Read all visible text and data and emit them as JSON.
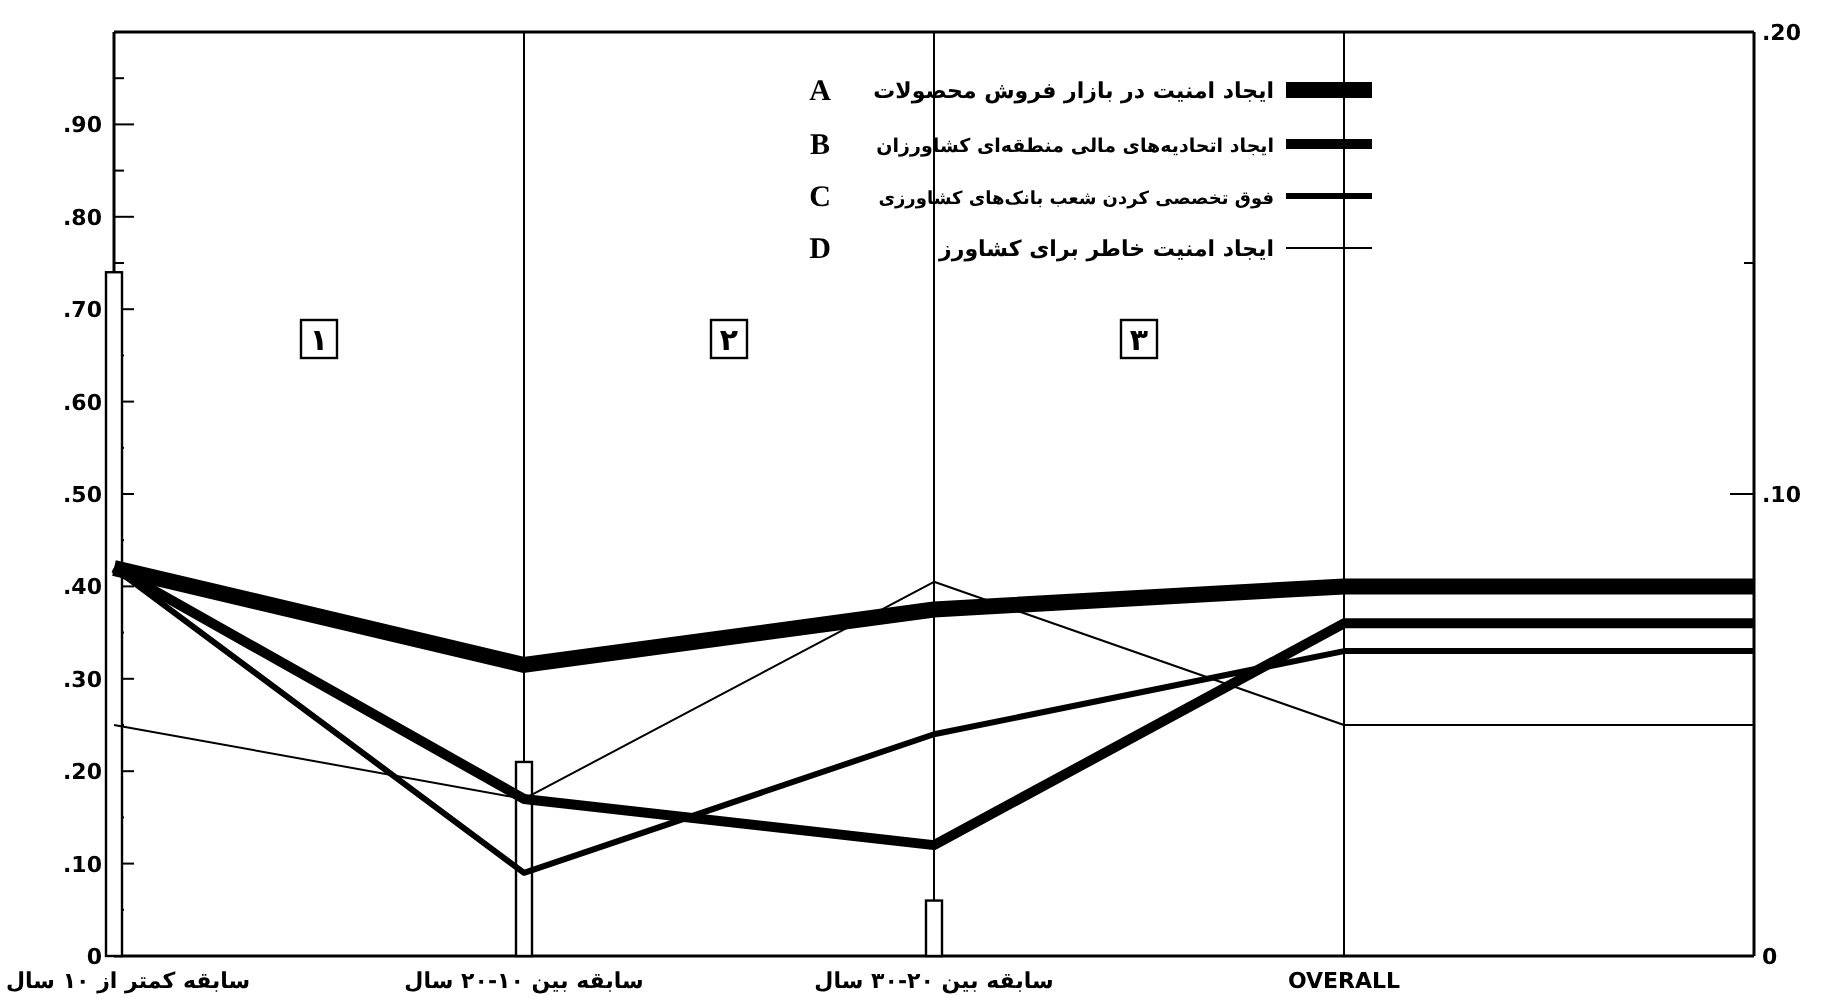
{
  "chart_data": {
    "type": "line",
    "categories": [
      "سابقه کمتر از ۱۰ سال",
      "سابقه بین ۱۰-۲۰ سال",
      "سابقه بین ۲۰-۳۰ سال",
      "OVERALL",
      null
    ],
    "series": [
      {
        "type": "bar",
        "color": "#ffffff",
        "values": [
          0.74,
          0.21,
          0.06,
          null,
          null
        ]
      },
      {
        "name": "ایجاد امنیت در بازار فروش محصولات",
        "color": "#000000",
        "axis": "y2",
        "values": [
          0.084,
          0.063,
          0.075,
          0.08,
          0.08
        ]
      },
      {
        "name": "ایجاد اتحادیه‌های مالی منطقه‌ای کشاورزان",
        "color": "#000000",
        "axis": "y2",
        "values": [
          0.084,
          0.034,
          0.024,
          0.072,
          0.072
        ]
      },
      {
        "name": "فوق تخصصی کردن شعب بانک‌های کشاورزی",
        "color": "#000000",
        "axis": "y2",
        "values": [
          0.084,
          0.018,
          0.048,
          0.066,
          0.066
        ]
      },
      {
        "name": "ایجاد امنیت خاطر برای کشاورز",
        "color": "#000000",
        "axis": "y2",
        "values": [
          0.05,
          0.034,
          0.081,
          0.05,
          0.05
        ]
      }
    ],
    "ylim": [
      0,
      1
    ],
    "yticks": [
      0,
      {
        "value": 0.05,
        "label": null
      },
      {
        "value": 0.1,
        "label": ".10"
      },
      {
        "value": 0.15,
        "label": null
      },
      {
        "value": 0.2,
        "label": ".20"
      },
      {
        "value": 0.25,
        "label": null
      },
      {
        "value": 0.3,
        "label": ".30"
      },
      {
        "value": 0.35,
        "label": null
      },
      {
        "value": 0.4,
        "label": ".40"
      },
      {
        "value": 0.45,
        "label": null
      },
      {
        "value": 0.5,
        "label": ".50"
      },
      {
        "value": 0.55,
        "label": null
      },
      {
        "value": 0.6,
        "label": ".60"
      },
      {
        "value": 0.65,
        "label": null
      },
      {
        "value": 0.7,
        "label": ".70"
      },
      {
        "value": 0.75,
        "label": null
      },
      {
        "value": 0.8,
        "label": ".80"
      },
      {
        "value": 0.85,
        "label": null
      },
      {
        "value": 0.9,
        "label": ".90"
      },
      {
        "value": 0.95,
        "label": null
      }
    ],
    "y2lim": [
      0,
      0.2
    ],
    "y2ticks": [
      0,
      {
        "value": 0.05,
        "label": null
      },
      {
        "value": 0.1,
        "label": ".10"
      },
      {
        "value": 0.15,
        "label": null
      },
      {
        "value": 0.2,
        "label": ".20"
      }
    ],
    "grid": "x",
    "legend": "top",
    "annotations": [
      "A",
      "B",
      "C",
      "D",
      "۱",
      "۲",
      "۳"
    ]
  }
}
